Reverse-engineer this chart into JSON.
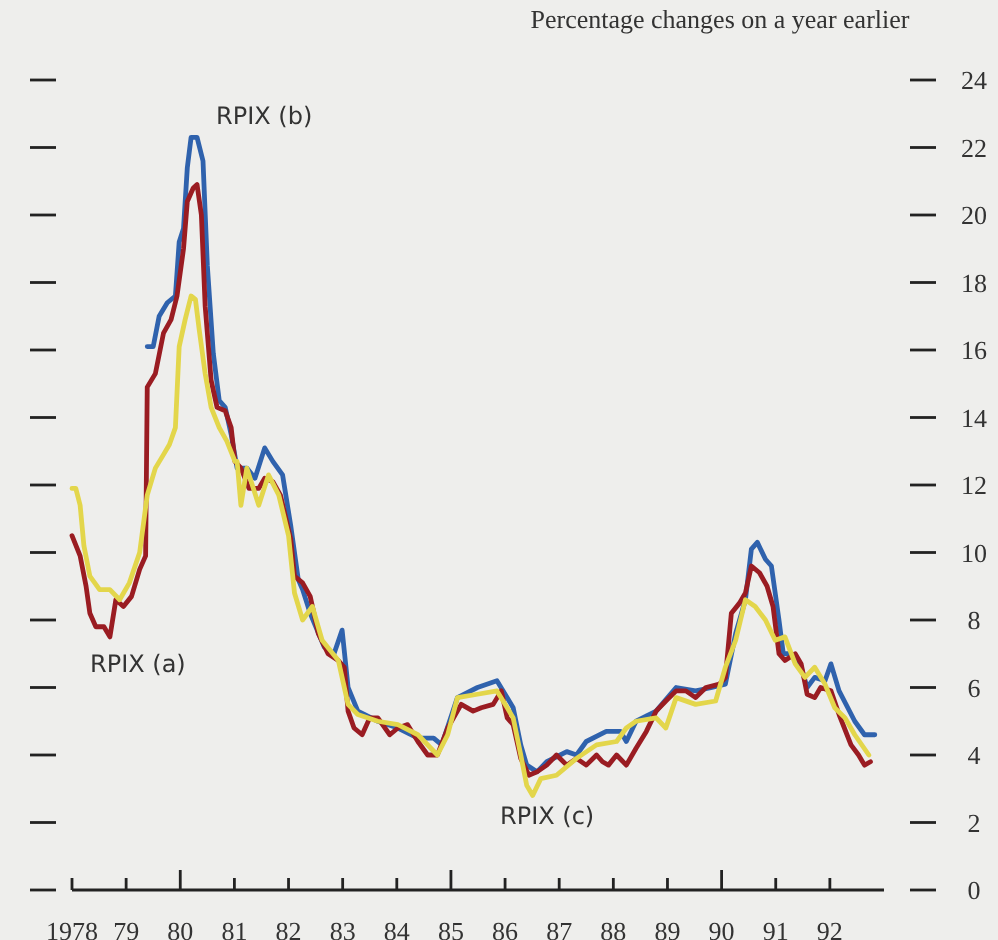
{
  "chart_data": {
    "type": "line",
    "ylabel": "Percentage changes on a year earlier",
    "xlim": [
      1978,
      1993
    ],
    "ylim": [
      0,
      24
    ],
    "xticks": [
      {
        "value": 1978,
        "label": "1978"
      },
      {
        "value": 1979,
        "label": "79"
      },
      {
        "value": 1980,
        "label": "80"
      },
      {
        "value": 1981,
        "label": "81"
      },
      {
        "value": 1982,
        "label": "82"
      },
      {
        "value": 1983,
        "label": "83"
      },
      {
        "value": 1984,
        "label": "84"
      },
      {
        "value": 1985,
        "label": "85"
      },
      {
        "value": 1986,
        "label": "86"
      },
      {
        "value": 1987,
        "label": "87"
      },
      {
        "value": 1988,
        "label": "88"
      },
      {
        "value": 1989,
        "label": "89"
      },
      {
        "value": 1990,
        "label": "90"
      },
      {
        "value": 1991,
        "label": "91"
      },
      {
        "value": 1992,
        "label": "92"
      }
    ],
    "yticks": [
      0,
      2,
      4,
      6,
      8,
      10,
      12,
      14,
      16,
      18,
      20,
      22,
      24
    ],
    "grid": false,
    "legend": false,
    "marker": "none",
    "line_style": "solid",
    "series": [
      {
        "name": "RPIX (b)",
        "color": "#2f62ad",
        "x": [
          1979.39,
          1979.5,
          1979.61,
          1979.76,
          1979.91,
          1979.98,
          1980.06,
          1980.13,
          1980.2,
          1980.31,
          1980.42,
          1980.5,
          1980.61,
          1980.72,
          1980.83,
          1980.94,
          1981.05,
          1981.23,
          1981.38,
          1981.56,
          1981.71,
          1981.89,
          1982.04,
          1982.18,
          1982.26,
          1982.4,
          1982.66,
          1982.84,
          1982.99,
          1983.1,
          1983.28,
          1983.65,
          1984.02,
          1984.39,
          1984.68,
          1984.83,
          1985.12,
          1985.49,
          1985.85,
          1986.04,
          1986.15,
          1986.29,
          1986.4,
          1986.59,
          1986.77,
          1987.14,
          1987.32,
          1987.5,
          1987.87,
          1988.13,
          1988.24,
          1988.42,
          1988.79,
          1989.16,
          1989.52,
          1989.82,
          1990.07,
          1990.26,
          1990.44,
          1990.55,
          1990.66,
          1990.81,
          1990.92,
          1991.06,
          1991.14,
          1991.28,
          1991.47,
          1991.58,
          1991.72,
          1991.91,
          1992.02,
          1992.17,
          1992.46,
          1992.64,
          1992.83
        ],
        "values": [
          16.1,
          16.1,
          17.0,
          17.4,
          17.6,
          19.2,
          19.6,
          21.4,
          22.3,
          22.3,
          21.6,
          18.5,
          15.9,
          14.5,
          14.3,
          13.5,
          12.5,
          12.5,
          12.2,
          13.1,
          12.7,
          12.3,
          10.8,
          9.2,
          8.9,
          8.2,
          7.2,
          7.0,
          7.7,
          6.0,
          5.3,
          5.0,
          4.8,
          4.5,
          4.5,
          4.3,
          5.7,
          6.0,
          6.2,
          5.7,
          5.4,
          4.3,
          3.7,
          3.5,
          3.8,
          4.1,
          4.0,
          4.4,
          4.7,
          4.7,
          4.4,
          5.0,
          5.3,
          6.0,
          5.9,
          6.0,
          6.1,
          7.6,
          8.6,
          10.1,
          10.3,
          9.8,
          9.6,
          8.0,
          7.0,
          7.0,
          6.6,
          6.0,
          6.3,
          6.2,
          6.7,
          5.9,
          5.0,
          4.6,
          4.6
        ]
      },
      {
        "name": "RPIX (a)",
        "color": "#9a1c22",
        "x": [
          1978.0,
          1978.15,
          1978.26,
          1978.33,
          1978.44,
          1978.59,
          1978.7,
          1978.81,
          1978.95,
          1979.1,
          1979.25,
          1979.36,
          1979.39,
          1979.54,
          1979.69,
          1979.83,
          1979.94,
          1980.06,
          1980.13,
          1980.24,
          1980.31,
          1980.39,
          1980.46,
          1980.57,
          1980.68,
          1980.83,
          1980.94,
          1981.01,
          1981.12,
          1981.27,
          1981.45,
          1981.56,
          1981.71,
          1981.85,
          1982.04,
          1982.11,
          1982.26,
          1982.4,
          1982.55,
          1982.73,
          1982.92,
          1983.03,
          1983.1,
          1983.21,
          1983.36,
          1983.5,
          1983.65,
          1983.87,
          1984.02,
          1984.2,
          1984.39,
          1984.57,
          1984.75,
          1984.94,
          1985.19,
          1985.41,
          1985.56,
          1985.78,
          1985.93,
          1986.04,
          1986.15,
          1986.29,
          1986.44,
          1986.59,
          1986.77,
          1986.95,
          1987.14,
          1987.32,
          1987.5,
          1987.69,
          1987.8,
          1987.91,
          1988.06,
          1988.24,
          1988.42,
          1988.61,
          1988.79,
          1988.97,
          1989.16,
          1989.34,
          1989.52,
          1989.71,
          1989.96,
          1990.07,
          1990.18,
          1990.33,
          1990.44,
          1990.55,
          1990.7,
          1990.84,
          1990.95,
          1991.06,
          1991.17,
          1991.36,
          1991.47,
          1991.58,
          1991.72,
          1991.83,
          1992.02,
          1992.17,
          1992.39,
          1992.53,
          1992.64,
          1992.75
        ],
        "values": [
          10.5,
          9.9,
          9.0,
          8.2,
          7.8,
          7.8,
          7.5,
          8.6,
          8.4,
          8.7,
          9.5,
          9.9,
          14.9,
          15.3,
          16.5,
          16.9,
          17.6,
          19.0,
          20.4,
          20.8,
          20.9,
          20.0,
          17.3,
          15.1,
          14.3,
          14.2,
          13.7,
          12.7,
          12.5,
          11.9,
          11.9,
          12.2,
          12.1,
          11.7,
          10.4,
          9.3,
          9.1,
          8.7,
          7.6,
          7.0,
          6.8,
          6.6,
          5.3,
          4.8,
          4.6,
          5.1,
          5.1,
          4.6,
          4.8,
          4.9,
          4.4,
          4.0,
          4.0,
          4.8,
          5.5,
          5.3,
          5.4,
          5.5,
          5.9,
          5.1,
          4.9,
          3.9,
          3.4,
          3.5,
          3.7,
          4.0,
          3.7,
          3.9,
          3.7,
          4.0,
          3.8,
          3.7,
          4.0,
          3.7,
          4.2,
          4.7,
          5.3,
          5.6,
          5.9,
          5.9,
          5.7,
          6.0,
          6.1,
          6.3,
          8.2,
          8.5,
          8.8,
          9.6,
          9.4,
          9.0,
          8.4,
          7.0,
          6.8,
          7.0,
          6.7,
          5.8,
          5.7,
          6.0,
          5.9,
          5.2,
          4.3,
          4.0,
          3.7,
          3.8
        ]
      },
      {
        "name": "RPIX (c)",
        "color": "#e3d64b",
        "x": [
          1978.0,
          1978.07,
          1978.15,
          1978.22,
          1978.33,
          1978.51,
          1978.7,
          1978.88,
          1979.06,
          1979.25,
          1979.39,
          1979.54,
          1979.69,
          1979.8,
          1979.91,
          1979.98,
          1980.09,
          1980.2,
          1980.28,
          1980.35,
          1980.46,
          1980.57,
          1980.72,
          1980.86,
          1981.01,
          1981.05,
          1981.12,
          1981.23,
          1981.45,
          1981.63,
          1981.82,
          1982.0,
          1982.11,
          1982.26,
          1982.44,
          1982.62,
          1982.92,
          1983.1,
          1983.28,
          1983.65,
          1984.02,
          1984.39,
          1984.75,
          1984.94,
          1985.12,
          1985.49,
          1985.85,
          1986.04,
          1986.15,
          1986.29,
          1986.4,
          1986.51,
          1986.66,
          1986.95,
          1987.32,
          1987.69,
          1988.06,
          1988.24,
          1988.42,
          1988.79,
          1988.97,
          1989.16,
          1989.52,
          1989.89,
          1990.07,
          1990.26,
          1990.44,
          1990.62,
          1990.81,
          1990.99,
          1991.17,
          1991.36,
          1991.54,
          1991.72,
          1991.91,
          1992.09,
          1992.28,
          1992.46,
          1992.72
        ],
        "values": [
          11.9,
          11.9,
          11.4,
          10.2,
          9.3,
          8.9,
          8.9,
          8.6,
          9.1,
          10.0,
          11.7,
          12.5,
          12.9,
          13.2,
          13.7,
          16.1,
          16.9,
          17.6,
          17.5,
          16.6,
          15.3,
          14.3,
          13.7,
          13.3,
          12.7,
          12.7,
          11.4,
          12.5,
          11.4,
          12.3,
          11.7,
          10.5,
          8.8,
          8.0,
          8.4,
          7.4,
          6.8,
          5.5,
          5.2,
          5.0,
          4.9,
          4.6,
          4.0,
          4.6,
          5.7,
          5.8,
          5.9,
          5.4,
          5.1,
          4.0,
          3.1,
          2.8,
          3.3,
          3.4,
          3.9,
          4.3,
          4.4,
          4.8,
          5.0,
          5.1,
          4.8,
          5.7,
          5.5,
          5.6,
          6.6,
          7.4,
          8.6,
          8.4,
          8.0,
          7.4,
          7.5,
          6.7,
          6.3,
          6.6,
          6.1,
          5.4,
          5.1,
          4.6,
          4.0
        ]
      }
    ]
  }
}
